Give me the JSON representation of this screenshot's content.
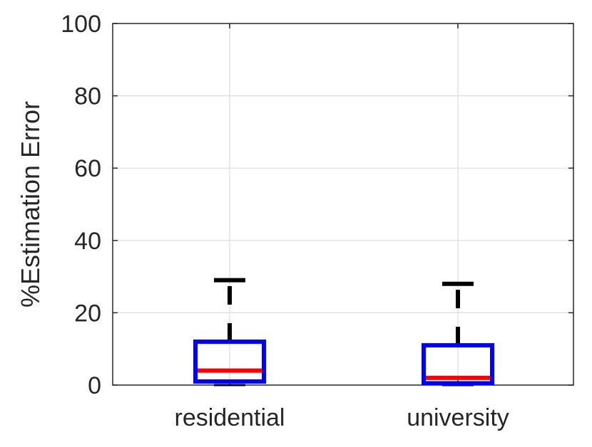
{
  "chart_data": {
    "type": "box",
    "title": "",
    "xlabel": "",
    "ylabel": "%Estimation Error",
    "ylim": [
      0,
      100
    ],
    "yticks": [
      "0",
      "20",
      "40",
      "60",
      "80",
      "100"
    ],
    "categories": [
      "residential",
      "university"
    ],
    "boxes": [
      {
        "category": "residential",
        "whisker_low": 0,
        "q1": 1,
        "median": 4,
        "q3": 12,
        "whisker_high": 29
      },
      {
        "category": "university",
        "whisker_low": 0,
        "q1": 0.5,
        "median": 2,
        "q3": 11,
        "whisker_high": 28
      }
    ],
    "grid": true,
    "colors": {
      "box": "#0000ff",
      "median": "#ff0000",
      "whisker": "#000000",
      "grid": "#dcdcdc",
      "axis": "#262626"
    }
  }
}
